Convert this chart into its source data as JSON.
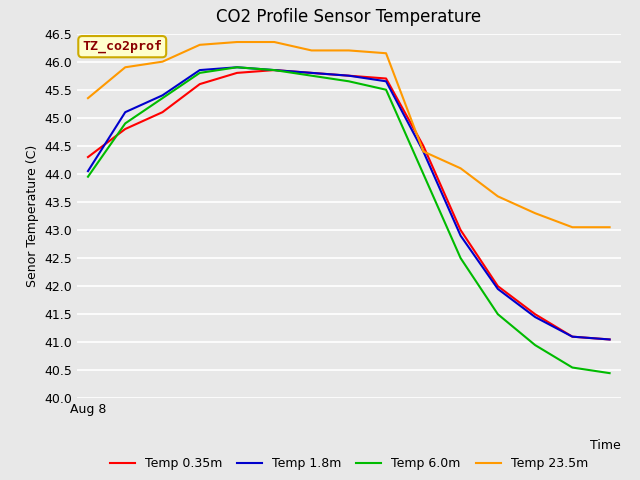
{
  "title": "CO2 Profile Sensor Temperature",
  "ylabel": "Senor Temperature (C)",
  "xlabel": "Time",
  "xticklabel": "Aug 8",
  "ylim": [
    40.0,
    46.5
  ],
  "yticks": [
    40.0,
    40.5,
    41.0,
    41.5,
    42.0,
    42.5,
    43.0,
    43.5,
    44.0,
    44.5,
    45.0,
    45.5,
    46.0,
    46.5
  ],
  "annotation_text": "TZ_co2prof",
  "annotation_color": "#8b0000",
  "annotation_bg": "#ffffcc",
  "annotation_border": "#ccaa00",
  "fig_bg": "#e8e8e8",
  "plot_bg": "#e8e8e8",
  "grid_color": "#ffffff",
  "series": [
    {
      "label": "Temp 0.35m",
      "color": "#ff0000",
      "x": [
        0,
        1,
        2,
        3,
        4,
        5,
        6,
        7,
        8,
        9,
        10,
        11,
        12,
        13,
        14
      ],
      "y": [
        44.3,
        44.8,
        45.1,
        45.6,
        45.8,
        45.85,
        45.8,
        45.75,
        45.7,
        44.5,
        43.0,
        42.0,
        41.5,
        41.1,
        41.05
      ]
    },
    {
      "label": "Temp 1.8m",
      "color": "#0000cc",
      "x": [
        0,
        1,
        2,
        3,
        4,
        5,
        6,
        7,
        8,
        9,
        10,
        11,
        12,
        13,
        14
      ],
      "y": [
        44.05,
        45.1,
        45.4,
        45.85,
        45.9,
        45.85,
        45.8,
        45.75,
        45.65,
        44.4,
        42.9,
        41.95,
        41.45,
        41.1,
        41.05
      ]
    },
    {
      "label": "Temp 6.0m",
      "color": "#00bb00",
      "x": [
        0,
        1,
        2,
        3,
        4,
        5,
        6,
        7,
        8,
        9,
        10,
        11,
        12,
        13,
        14
      ],
      "y": [
        43.95,
        44.9,
        45.35,
        45.8,
        45.9,
        45.85,
        45.75,
        45.65,
        45.5,
        44.0,
        42.5,
        41.5,
        40.95,
        40.55,
        40.45
      ]
    },
    {
      "label": "Temp 23.5m",
      "color": "#ff9900",
      "x": [
        0,
        1,
        2,
        3,
        4,
        5,
        6,
        7,
        8,
        9,
        10,
        11,
        12,
        13,
        14
      ],
      "y": [
        45.35,
        45.9,
        46.0,
        46.3,
        46.35,
        46.35,
        46.2,
        46.2,
        46.15,
        44.4,
        44.1,
        43.6,
        43.3,
        43.05,
        43.05
      ]
    }
  ],
  "legend_entries": [
    {
      "label": "Temp 0.35m",
      "color": "#ff0000"
    },
    {
      "label": "Temp 1.8m",
      "color": "#0000cc"
    },
    {
      "label": "Temp 6.0m",
      "color": "#00bb00"
    },
    {
      "label": "Temp 23.5m",
      "color": "#ff9900"
    }
  ],
  "title_fontsize": 12,
  "axis_label_fontsize": 9,
  "tick_fontsize": 9,
  "legend_fontsize": 9,
  "linewidth": 1.5
}
